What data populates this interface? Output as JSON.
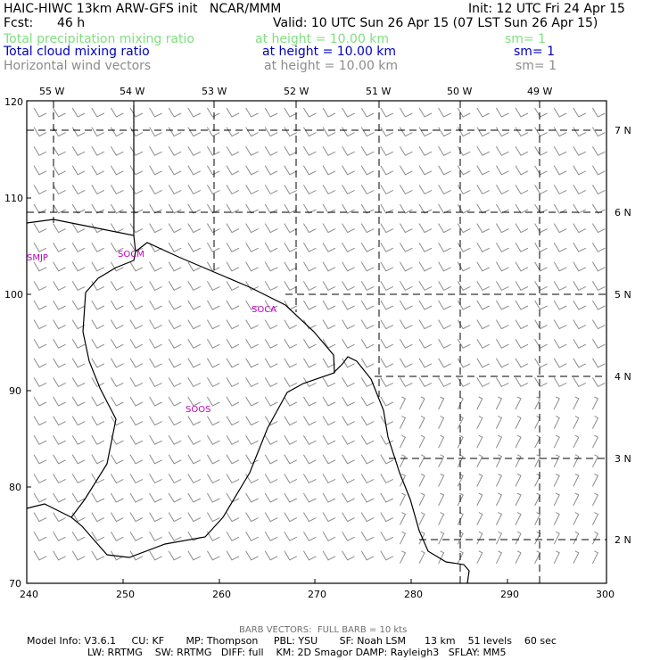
{
  "header": {
    "left_title": "HAIC-HIWC 13km ARW-GFS init   NCAR/MMM",
    "init": "Init: 12 UTC Fri 24 Apr 15",
    "fcst_label": "Fcst:",
    "fcst_value": "46 h",
    "valid": "Valid: 10 UTC Sun 26 Apr 15 (07 LST Sun 26 Apr 15)",
    "fields": [
      {
        "name": "Total precipitation mixing ratio",
        "height": "at height = 10.00 km",
        "sm": "sm= 1",
        "color": "#7fe07f"
      },
      {
        "name": "Total cloud mixing ratio",
        "height": "at height = 10.00 km",
        "sm": "sm= 1",
        "color": "#0000c0"
      },
      {
        "name": "Horizontal wind vectors",
        "height": "at height = 10.00 km",
        "sm": "sm= 1",
        "color": "#8c8c8c"
      }
    ]
  },
  "map": {
    "lon_labels": [
      "55 W",
      "54 W",
      "53 W",
      "52 W",
      "51 W",
      "50 W",
      "49 W"
    ],
    "lat_labels": [
      "7 N",
      "6 N",
      "5 N",
      "4 N",
      "3 N",
      "2 N"
    ],
    "x_ticks": [
      "240",
      "250",
      "260",
      "270",
      "280",
      "290",
      "300"
    ],
    "y_ticks": [
      "120",
      "110",
      "100",
      "90",
      "80",
      "70"
    ],
    "stations": [
      "SMJP",
      "SOCM",
      "SOCA",
      "SOOS"
    ]
  },
  "footer": {
    "barb_note": "BARB VECTORS:  FULL BARB = 10 kts",
    "model_line1": "Model Info: V3.6.1     CU: KF       MP: Thompson     PBL: YSU       SF: Noah LSM      13 km    51 levels    60 sec",
    "model_line2": "LW: RRTMG    SW: RRTMG   DIFF: full    KM: 2D Smagor DAMP: Rayleigh3   SFLAY: MM5"
  }
}
